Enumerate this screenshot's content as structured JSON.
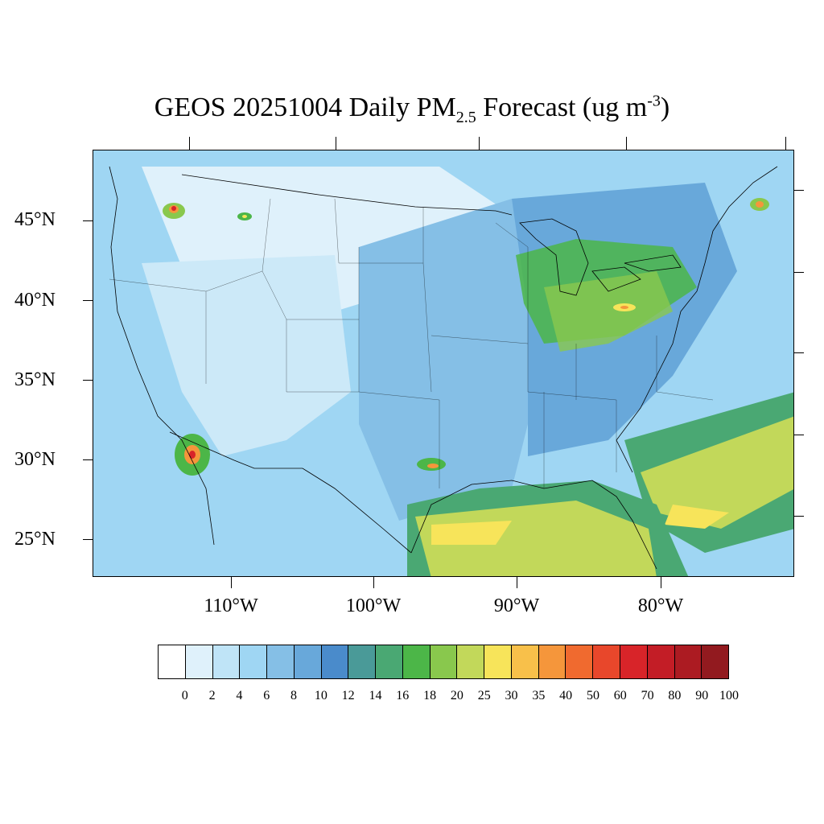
{
  "title": {
    "prefix": "GEOS 20251004 Daily PM",
    "subscript": "2.5",
    "middle": " Forecast (ug m",
    "superscript": "-3",
    "suffix": ")"
  },
  "lat_labels": [
    "45°N",
    "40°N",
    "35°N",
    "30°N",
    "25°N"
  ],
  "lon_labels": [
    "110°W",
    "100°W",
    "90°W",
    "80°W"
  ],
  "colorbar": {
    "labels": [
      "0",
      "2",
      "4",
      "6",
      "8",
      "10",
      "12",
      "14",
      "16",
      "18",
      "20",
      "25",
      "30",
      "35",
      "40",
      "50",
      "60",
      "70",
      "80",
      "90",
      "100"
    ],
    "colors": [
      "#ffffff",
      "#dff1fb",
      "#bfe4f7",
      "#9fd6f3",
      "#85bfe6",
      "#68a8da",
      "#4a8bcb",
      "#4a9a98",
      "#4aa873",
      "#4cb648",
      "#89c84d",
      "#c2d85a",
      "#f7e45a",
      "#f8c04a",
      "#f5963b",
      "#f06a2f",
      "#e8472b",
      "#d82429",
      "#c31d26",
      "#ac1b22",
      "#921a1f"
    ]
  },
  "map_colors": {
    "ocean": "#aad9f3",
    "clean": "#dff1fb",
    "light": "#bfe4f7",
    "moderate": "#85bfe6",
    "elevated": "#68a8da",
    "teal": "#4a9a98",
    "green": "#4cb648",
    "yellowgreen": "#c2d85a",
    "yellow": "#f7e45a",
    "orange": "#f5963b",
    "red": "#d82429"
  }
}
